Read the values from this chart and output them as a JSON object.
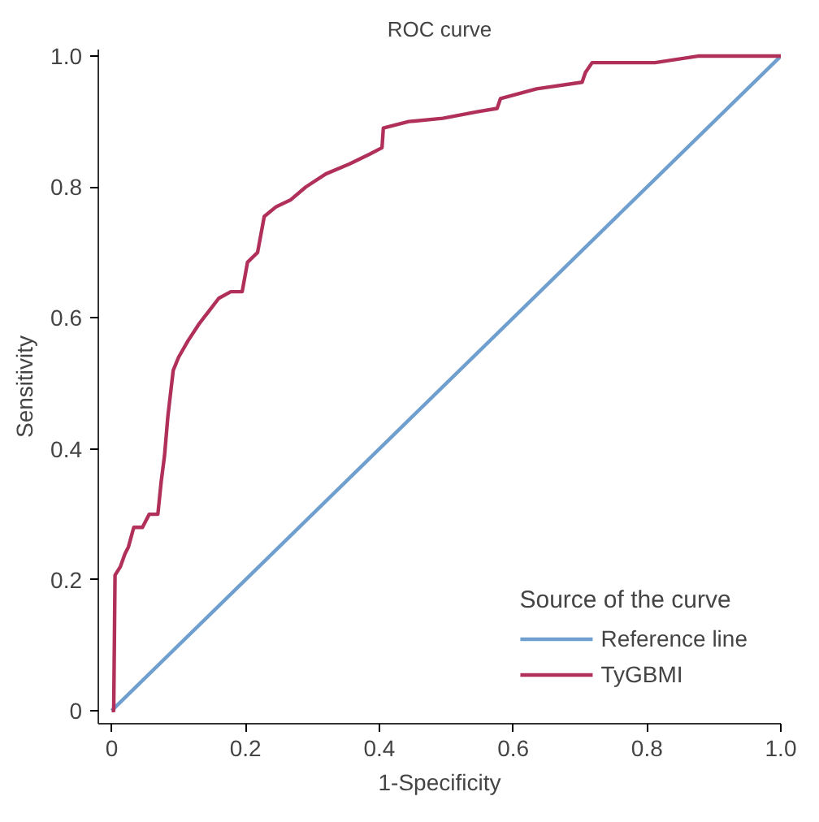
{
  "chart_data": {
    "type": "line",
    "title": "ROC curve",
    "xlabel": "1-Specificity",
    "ylabel": "Sensitivity",
    "legend_title": "Source of the curve",
    "legend": "bottom right",
    "grid": false,
    "marker": "none",
    "line_style": "solid",
    "xlim": [
      -0.02,
      1.0
    ],
    "ylim": [
      -0.02,
      1.01
    ],
    "xticks": [
      0,
      0.2,
      0.4,
      0.6,
      0.8,
      {
        "value": 1,
        "label": "1.0"
      }
    ],
    "yticks": [
      0,
      0.2,
      0.4,
      0.6,
      0.8,
      {
        "value": 1,
        "label": "1.0"
      }
    ],
    "series": [
      {
        "name": "Reference line",
        "color": "#6f9fcf",
        "x": [
          0,
          1
        ],
        "values": [
          0,
          1
        ]
      },
      {
        "name": "TyGBMI",
        "color": "#b0305a",
        "x": [
          0,
          0.003,
          0.005,
          0.013,
          0.02,
          0.025,
          0.033,
          0.046,
          0.056,
          0.069,
          0.074,
          0.079,
          0.084,
          0.092,
          0.1,
          0.114,
          0.13,
          0.145,
          0.16,
          0.178,
          0.195,
          0.203,
          0.218,
          0.228,
          0.246,
          0.267,
          0.29,
          0.32,
          0.355,
          0.385,
          0.404,
          0.406,
          0.444,
          0.495,
          0.546,
          0.576,
          0.581,
          0.635,
          0.703,
          0.708,
          0.718,
          0.812,
          0.876,
          1.0
        ],
        "values": [
          0,
          0,
          0.207,
          0.22,
          0.24,
          0.25,
          0.28,
          0.28,
          0.3,
          0.3,
          0.35,
          0.39,
          0.45,
          0.52,
          0.54,
          0.565,
          0.59,
          0.61,
          0.63,
          0.64,
          0.64,
          0.685,
          0.7,
          0.755,
          0.77,
          0.78,
          0.8,
          0.82,
          0.835,
          0.85,
          0.86,
          0.89,
          0.9,
          0.905,
          0.915,
          0.92,
          0.935,
          0.95,
          0.96,
          0.975,
          0.99,
          0.99,
          1.0,
          1.0
        ]
      }
    ]
  }
}
